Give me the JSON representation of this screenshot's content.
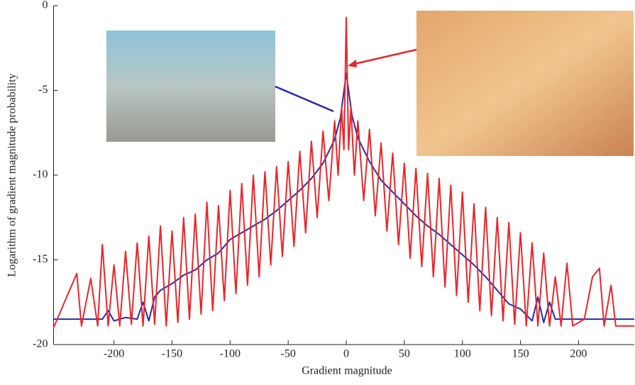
{
  "chart_data": {
    "type": "line",
    "xlabel": "Gradient magnitude",
    "ylabel": "Logarithm of gradient magnitude probability",
    "xlim": [
      -252,
      248
    ],
    "ylim": [
      -20,
      0
    ],
    "xticks": [
      -200,
      -150,
      -100,
      -50,
      0,
      50,
      100,
      150,
      200
    ],
    "yticks": [
      0,
      -5,
      -10,
      -15,
      -20
    ],
    "series": [
      {
        "color": "#2a28a8",
        "x": [
          -252,
          -210,
          -205,
          -200,
          -190,
          -180,
          -175,
          -170,
          -165,
          -160,
          -150,
          -140,
          -130,
          -120,
          -110,
          -100,
          -90,
          -80,
          -70,
          -60,
          -50,
          -40,
          -30,
          -20,
          -10,
          -5,
          0,
          5,
          10,
          20,
          30,
          40,
          50,
          60,
          70,
          80,
          90,
          100,
          110,
          120,
          130,
          140,
          150,
          160,
          165,
          170,
          175,
          180,
          190,
          248
        ],
        "values": [
          -18.5,
          -18.5,
          -18,
          -18.6,
          -18.4,
          -18.5,
          -17.5,
          -18.6,
          -17.2,
          -16.8,
          -16.4,
          -15.9,
          -15.6,
          -15,
          -14.6,
          -13.8,
          -13.4,
          -13,
          -12.6,
          -12.1,
          -11.5,
          -10.9,
          -10.2,
          -9.3,
          -7.9,
          -6.6,
          -4,
          -6.5,
          -7.8,
          -9.2,
          -10.3,
          -11,
          -11.7,
          -12.4,
          -13,
          -13.5,
          -14.1,
          -14.7,
          -15.3,
          -16,
          -16.8,
          -17.6,
          -17.9,
          -18.6,
          -17.2,
          -18.7,
          -17.5,
          -18.5,
          -18.5,
          -18.5
        ]
      },
      {
        "color": "#e8262a",
        "x": [
          -252,
          -232,
          -228,
          -220,
          -214,
          -210,
          -205,
          -200,
          -195,
          -190,
          -185,
          -180,
          -175,
          -170,
          -165,
          -160,
          -155,
          -150,
          -145,
          -140,
          -135,
          -130,
          -125,
          -120,
          -115,
          -110,
          -105,
          -100,
          -95,
          -90,
          -85,
          -80,
          -75,
          -70,
          -65,
          -60,
          -55,
          -50,
          -45,
          -40,
          -35,
          -30,
          -25,
          -20,
          -15,
          -10,
          -7,
          -4,
          -2,
          0,
          2,
          4,
          7,
          10,
          15,
          20,
          25,
          30,
          35,
          40,
          45,
          50,
          55,
          60,
          65,
          70,
          75,
          80,
          85,
          90,
          95,
          100,
          105,
          110,
          115,
          120,
          125,
          130,
          135,
          140,
          145,
          150,
          155,
          160,
          165,
          170,
          175,
          180,
          185,
          190,
          195,
          205,
          212,
          218,
          222,
          228,
          232,
          248
        ],
        "values": [
          -19,
          -15.8,
          -18.9,
          -16.1,
          -18.9,
          -14.1,
          -18.9,
          -15.3,
          -18.9,
          -14.5,
          -18.8,
          -14,
          -18.9,
          -13.6,
          -18.8,
          -13,
          -18.9,
          -13.3,
          -18.7,
          -12.5,
          -18.5,
          -12.3,
          -18.2,
          -11.6,
          -18,
          -11.8,
          -17.4,
          -10.9,
          -17,
          -10.5,
          -16.5,
          -10,
          -16,
          -9.8,
          -15.3,
          -9.5,
          -14.8,
          -9.2,
          -14.2,
          -8.6,
          -13.4,
          -8,
          -12.5,
          -7.4,
          -11.5,
          -6.8,
          -10,
          -6,
          -8.5,
          -0.7,
          -8.5,
          -6,
          -10,
          -6.8,
          -11.5,
          -7.3,
          -12.4,
          -8.1,
          -13.3,
          -8.7,
          -14.1,
          -9.3,
          -14.9,
          -9.6,
          -15.4,
          -9.9,
          -16,
          -10.2,
          -16.6,
          -10.6,
          -17.1,
          -11,
          -17.5,
          -11.7,
          -18,
          -11.9,
          -18.3,
          -12.5,
          -18.6,
          -12.8,
          -18.8,
          -13.4,
          -18.9,
          -14,
          -18.9,
          -14.6,
          -18.9,
          -16,
          -18.9,
          -15.2,
          -18.9,
          -18.5,
          -16,
          -15.5,
          -18.9,
          -16.5,
          -18.9,
          -18.9
        ]
      }
    ]
  }
}
